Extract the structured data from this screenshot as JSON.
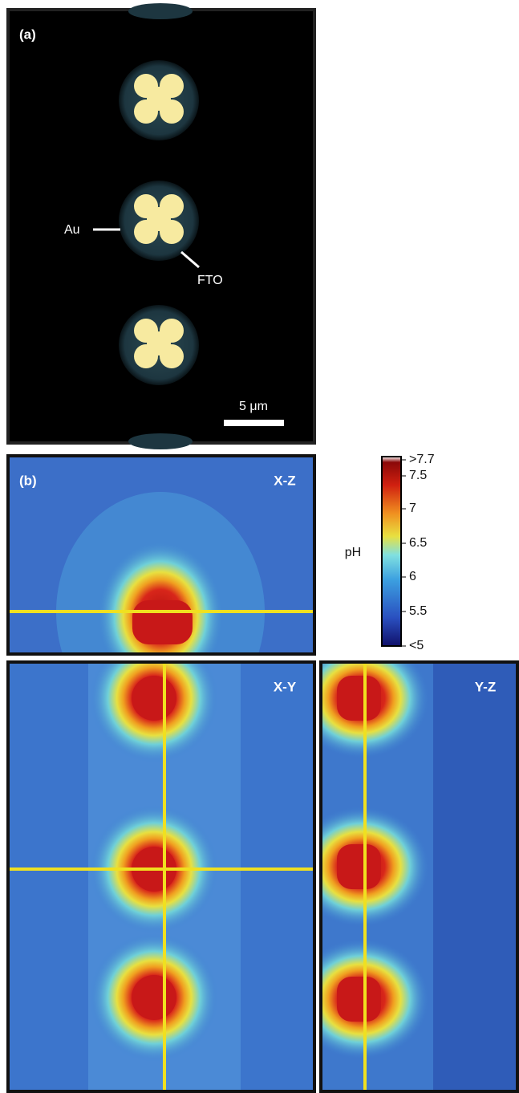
{
  "panel_a": {
    "label": "(a)",
    "annotations": [
      "Au",
      "FTO"
    ],
    "scale_bar": "5 μm"
  },
  "panel_b": {
    "label": "(b)",
    "views": [
      "X-Z",
      "X-Y",
      "Y-Z"
    ],
    "colorbar": {
      "title": "pH",
      "ticks": [
        ">7.7",
        "7.5",
        "7",
        "6.5",
        "6",
        "5.5",
        "<5"
      ]
    }
  }
}
